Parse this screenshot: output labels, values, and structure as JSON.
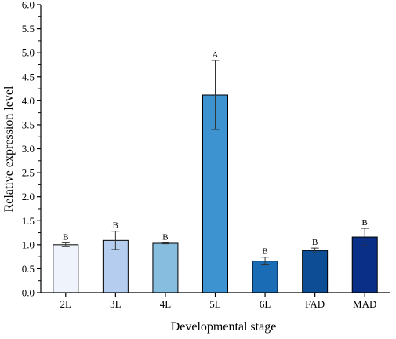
{
  "chart_data": {
    "type": "bar",
    "xlabel": "Developmental stage",
    "ylabel": "Relative expression level",
    "ylim": [
      0,
      6
    ],
    "ytick_step": 0.5,
    "ytick_labels": [
      "0.0",
      "0.5",
      "1.0",
      "1.5",
      "2.0",
      "2.5",
      "3.0",
      "3.5",
      "4.0",
      "4.5",
      "5.0",
      "5.5",
      "6.0"
    ],
    "categories": [
      "2L",
      "3L",
      "4L",
      "5L",
      "6L",
      "FAD",
      "MAD"
    ],
    "values": [
      1.0,
      1.09,
      1.03,
      4.12,
      0.66,
      0.88,
      1.16
    ],
    "errors": [
      0.04,
      0.19,
      0.01,
      0.72,
      0.08,
      0.05,
      0.18
    ],
    "significance": [
      "B",
      "B",
      "B",
      "A",
      "B",
      "B",
      "B"
    ],
    "colors": [
      "#eff3fb",
      "#b5cdee",
      "#87bedf",
      "#3c93d0",
      "#1a6db4",
      "#0d4d95",
      "#0a2f86"
    ],
    "grid": false,
    "legend": "none"
  }
}
